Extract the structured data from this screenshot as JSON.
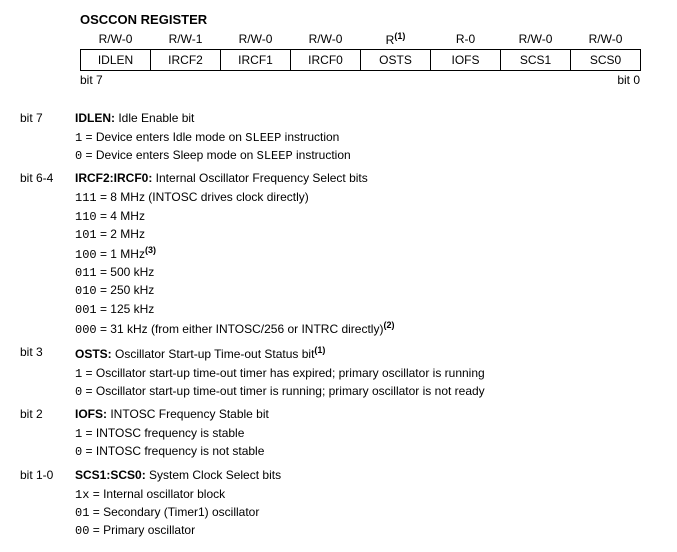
{
  "title": "OSCCON REGISTER",
  "register": {
    "rw": [
      "R/W-0",
      "R/W-1",
      "R/W-0",
      "R/W-0",
      "R",
      "R-0",
      "R/W-0",
      "R/W-0"
    ],
    "rw_sup": [
      "",
      "",
      "",
      "",
      "(1)",
      "",
      "",
      ""
    ],
    "names": [
      "IDLEN",
      "IRCF2",
      "IRCF1",
      "IRCF0",
      "OSTS",
      "IOFS",
      "SCS1",
      "SCS0"
    ],
    "left_label": "bit 7",
    "right_label": "bit 0"
  },
  "bits": [
    {
      "range": "bit 7",
      "name": "IDLEN:",
      "desc": "Idle Enable bit",
      "lines": [
        {
          "code": "1",
          "text": " =  Device enters Idle mode on ",
          "mono": "SLEEP",
          "tail": " instruction"
        },
        {
          "code": "0",
          "text": " =  Device enters Sleep mode on ",
          "mono": "SLEEP",
          "tail": " instruction"
        }
      ]
    },
    {
      "range": "bit 6-4",
      "name": "IRCF2:IRCF0:",
      "desc": "Internal Oscillator Frequency Select bits",
      "lines": [
        {
          "code": "111",
          "text": " = 8 MHz (INTOSC drives clock directly)"
        },
        {
          "code": "110",
          "text": " = 4 MHz"
        },
        {
          "code": "101",
          "text": " = 2 MHz"
        },
        {
          "code": "100",
          "text": " = 1 MHz",
          "sup": "(3)"
        },
        {
          "code": "011",
          "text": " = 500 kHz"
        },
        {
          "code": "010",
          "text": " = 250 kHz"
        },
        {
          "code": "001",
          "text": " = 125 kHz"
        },
        {
          "code": "000",
          "text": " = 31 kHz (from either INTOSC/256 or INTRC directly)",
          "sup": "(2)"
        }
      ]
    },
    {
      "range": "bit 3",
      "name": "OSTS:",
      "desc": "Oscillator Start-up Time-out Status bit",
      "desc_sup": "(1)",
      "lines": [
        {
          "code": "1",
          "text": " =  Oscillator start-up time-out timer has expired; primary oscillator is running"
        },
        {
          "code": "0",
          "text": " =  Oscillator start-up time-out timer is running; primary oscillator is not ready"
        }
      ]
    },
    {
      "range": "bit 2",
      "name": "IOFS:",
      "desc": "INTOSC Frequency Stable bit",
      "lines": [
        {
          "code": "1",
          "text": " =  INTOSC frequency is stable"
        },
        {
          "code": "0",
          "text": " =  INTOSC frequency is not stable"
        }
      ]
    },
    {
      "range": "bit 1-0",
      "name": "SCS1:SCS0:",
      "desc": "System Clock Select bits",
      "lines": [
        {
          "code": "1x",
          "text": " = Internal oscillator block"
        },
        {
          "code": "01",
          "text": " = Secondary (Timer1) oscillator"
        },
        {
          "code": "00",
          "text": " = Primary oscillator"
        }
      ]
    }
  ]
}
